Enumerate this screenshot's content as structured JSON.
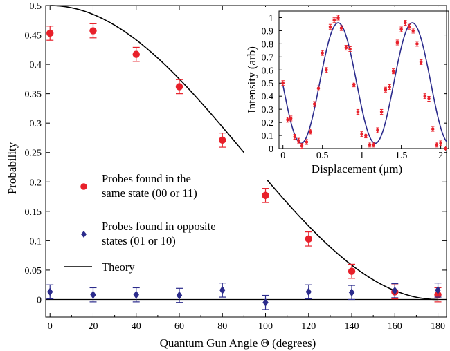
{
  "chart_data": [
    {
      "type": "scatter",
      "xlabel": "Quantum Gun Angle Θ (degrees)",
      "ylabel": "Probability",
      "xlim": [
        -2,
        184
      ],
      "ylim": [
        -0.03,
        0.5
      ],
      "x_ticks": [
        0,
        20,
        40,
        60,
        80,
        100,
        120,
        140,
        160,
        180
      ],
      "y_ticks": [
        0,
        0.05,
        0.1,
        0.15,
        0.2,
        0.25,
        0.3,
        0.35,
        0.4,
        0.45,
        0.5
      ],
      "x_tick_labels": [
        "0",
        "20",
        "40",
        "60",
        "80",
        "100",
        "120",
        "140",
        "160",
        "180"
      ],
      "y_tick_labels": [
        "0",
        "0.05",
        "0.1",
        "0.15",
        "0.2",
        "0.25",
        "0.3",
        "0.35",
        "0.4",
        "0.45",
        "0.5"
      ],
      "grid": false,
      "series": [
        {
          "name": "Probes found in the same state (00 or 11)",
          "marker": "circle",
          "color": "#e8202a",
          "x": [
            0,
            20,
            40,
            60,
            80,
            100,
            120,
            140,
            160,
            180
          ],
          "y": [
            0.453,
            0.457,
            0.417,
            0.362,
            0.271,
            0.177,
            0.103,
            0.048,
            0.013,
            0.008
          ],
          "err": [
            0.012,
            0.012,
            0.012,
            0.012,
            0.012,
            0.012,
            0.012,
            0.012,
            0.012,
            0.012
          ]
        },
        {
          "name": "Probes found in opposite states (01 or 10)",
          "marker": "diamond",
          "color": "#2b2b8c",
          "x": [
            0,
            20,
            40,
            60,
            80,
            100,
            120,
            140,
            160,
            180
          ],
          "y": [
            0.013,
            0.008,
            0.008,
            0.007,
            0.016,
            -0.005,
            0.013,
            0.012,
            0.015,
            0.016
          ],
          "err": [
            0.012,
            0.012,
            0.012,
            0.012,
            0.012,
            0.012,
            0.012,
            0.012,
            0.012,
            0.012
          ]
        },
        {
          "name": "Theory",
          "type": "line",
          "color": "#000000",
          "formula": "0.5*cos^2(Θ/2)"
        }
      ],
      "legend": {
        "placement": "center-left",
        "lines": [
          [
            "Probes found in the",
            "same state (00 or 11)"
          ],
          [
            "Probes found in opposite",
            "states (01 or 10)"
          ],
          [
            "Theory"
          ]
        ]
      }
    },
    {
      "type": "scatter",
      "placement": "inset top-right",
      "xlabel": "Displacement (μm)",
      "ylabel": "Intensity (arb)",
      "xlim": [
        -0.05,
        2.1
      ],
      "ylim": [
        0,
        1.05
      ],
      "x_ticks": [
        0,
        0.5,
        1,
        1.5,
        2
      ],
      "y_ticks": [
        0,
        0.1,
        0.2,
        0.3,
        0.4,
        0.5,
        0.6,
        0.7,
        0.8,
        0.9,
        1
      ],
      "x_tick_labels": [
        "0",
        "0.5",
        "1",
        "1.5",
        "2"
      ],
      "y_tick_labels": [
        "0",
        "0.1",
        "0.2",
        "0.3",
        "0.4",
        "0.5",
        "0.6",
        "0.7",
        "0.8",
        "0.9",
        "1"
      ],
      "grid": false,
      "series": [
        {
          "name": "data",
          "marker": "circle",
          "color": "#e8202a",
          "x": [
            0,
            0.06,
            0.1,
            0.15,
            0.2,
            0.24,
            0.3,
            0.35,
            0.4,
            0.45,
            0.5,
            0.55,
            0.6,
            0.65,
            0.7,
            0.74,
            0.8,
            0.85,
            0.9,
            0.95,
            1.0,
            1.05,
            1.1,
            1.15,
            1.2,
            1.25,
            1.3,
            1.35,
            1.4,
            1.45,
            1.5,
            1.55,
            1.6,
            1.65,
            1.7,
            1.75,
            1.8,
            1.85,
            1.9,
            1.95,
            2.0,
            2.06
          ],
          "y": [
            0.5,
            0.22,
            0.23,
            0.09,
            0.06,
            0.02,
            0.05,
            0.13,
            0.34,
            0.46,
            0.73,
            0.6,
            0.93,
            0.98,
            1.0,
            0.92,
            0.77,
            0.76,
            0.49,
            0.28,
            0.11,
            0.1,
            0.03,
            0.03,
            0.14,
            0.28,
            0.45,
            0.47,
            0.59,
            0.81,
            0.91,
            0.96,
            0.93,
            0.9,
            0.8,
            0.66,
            0.4,
            0.38,
            0.15,
            0.03,
            0.04,
            0.0
          ]
        },
        {
          "name": "fit",
          "type": "line",
          "color": "#2b2b8c",
          "formula": "0.5+0.46*cos(2π(x-0.7)/0.94)"
        }
      ]
    }
  ]
}
